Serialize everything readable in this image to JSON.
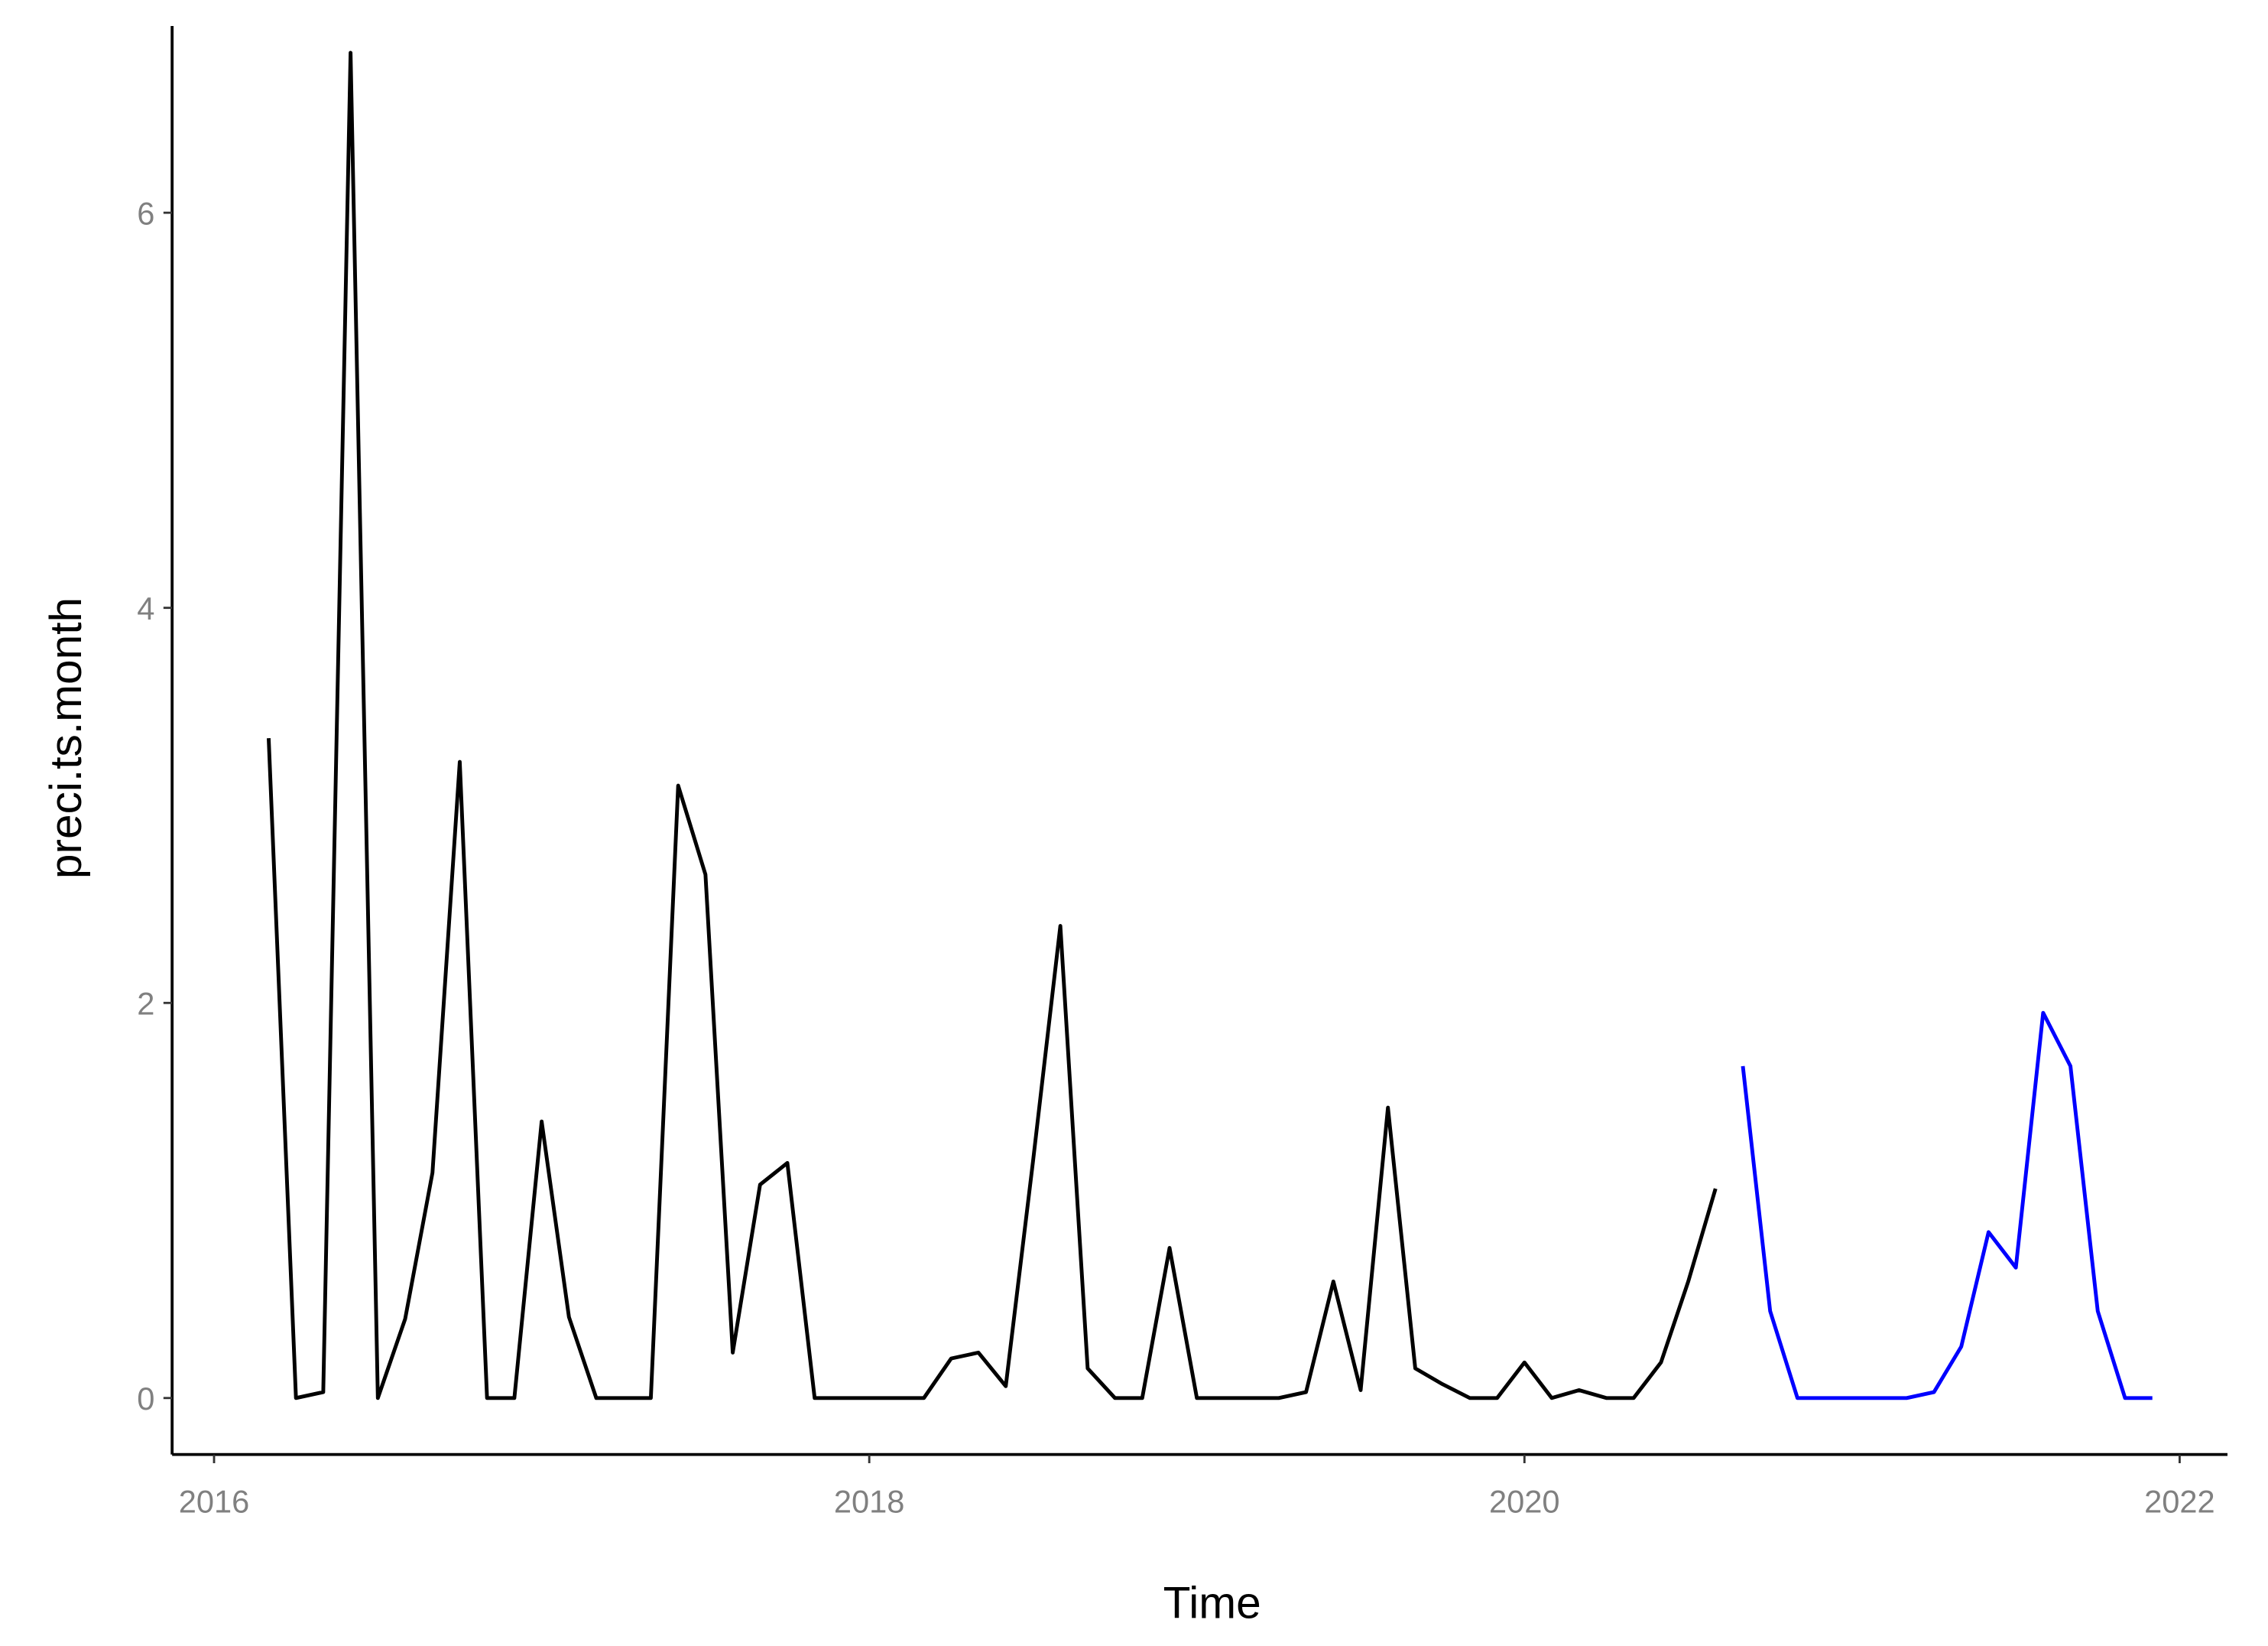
{
  "chart_data": {
    "type": "line",
    "x_label": "Time",
    "y_label": "preci.ts.month",
    "xlim": [
      2015.872,
      2022.146
    ],
    "ylim": [
      -0.286,
      6.945
    ],
    "xticks": [
      2016,
      2018,
      2020,
      2022
    ],
    "yticks": [
      0,
      2,
      4,
      6
    ],
    "series": [
      {
        "color": "#000000",
        "x": [
          2016.1667,
          2016.25,
          2016.3333,
          2016.4167,
          2016.5,
          2016.5833,
          2016.6667,
          2016.75,
          2016.8333,
          2016.9167,
          2017.0,
          2017.0833,
          2017.1667,
          2017.25,
          2017.3333,
          2017.4167,
          2017.5,
          2017.5833,
          2017.6667,
          2017.75,
          2017.8333,
          2017.9167,
          2018.0,
          2018.0833,
          2018.1667,
          2018.25,
          2018.3333,
          2018.4167,
          2018.5,
          2018.5833,
          2018.6667,
          2018.75,
          2018.8333,
          2018.9167,
          2019.0,
          2019.0833,
          2019.1667,
          2019.25,
          2019.3333,
          2019.4167,
          2019.5,
          2019.5833,
          2019.6667,
          2019.75,
          2019.8333,
          2019.9167,
          2020.0,
          2020.0833,
          2020.1667,
          2020.25,
          2020.3333,
          2020.4167,
          2020.5,
          2020.5833
        ],
        "values": [
          3.34,
          0,
          0.03,
          6.81,
          0,
          0.4,
          1.14,
          3.22,
          0,
          0,
          1.4,
          0.41,
          0,
          0,
          0,
          3.1,
          2.65,
          0.23,
          1.08,
          1.19,
          0,
          0,
          0,
          0,
          0,
          0.2,
          0.23,
          0.06,
          1.2,
          2.39,
          0.15,
          0,
          0,
          0.76,
          0,
          0,
          0,
          0,
          0.03,
          0.59,
          0.04,
          1.47,
          0.15,
          0.07,
          0,
          0,
          0.18,
          0,
          0.04,
          0,
          0,
          0.18,
          0.59,
          1.06
        ]
      },
      {
        "color": "#0000ff",
        "x": [
          2020.6667,
          2020.75,
          2020.8333,
          2020.9167,
          2021.0,
          2021.0833,
          2021.1667,
          2021.25,
          2021.3333,
          2021.4167,
          2021.5,
          2021.5833,
          2021.6667,
          2021.75,
          2021.8333,
          2021.9167
        ],
        "values": [
          1.68,
          0.44,
          0,
          0,
          0,
          0,
          0,
          0.03,
          0.26,
          0.84,
          0.66,
          1.95,
          1.68,
          0.44,
          0,
          0
        ]
      }
    ]
  }
}
